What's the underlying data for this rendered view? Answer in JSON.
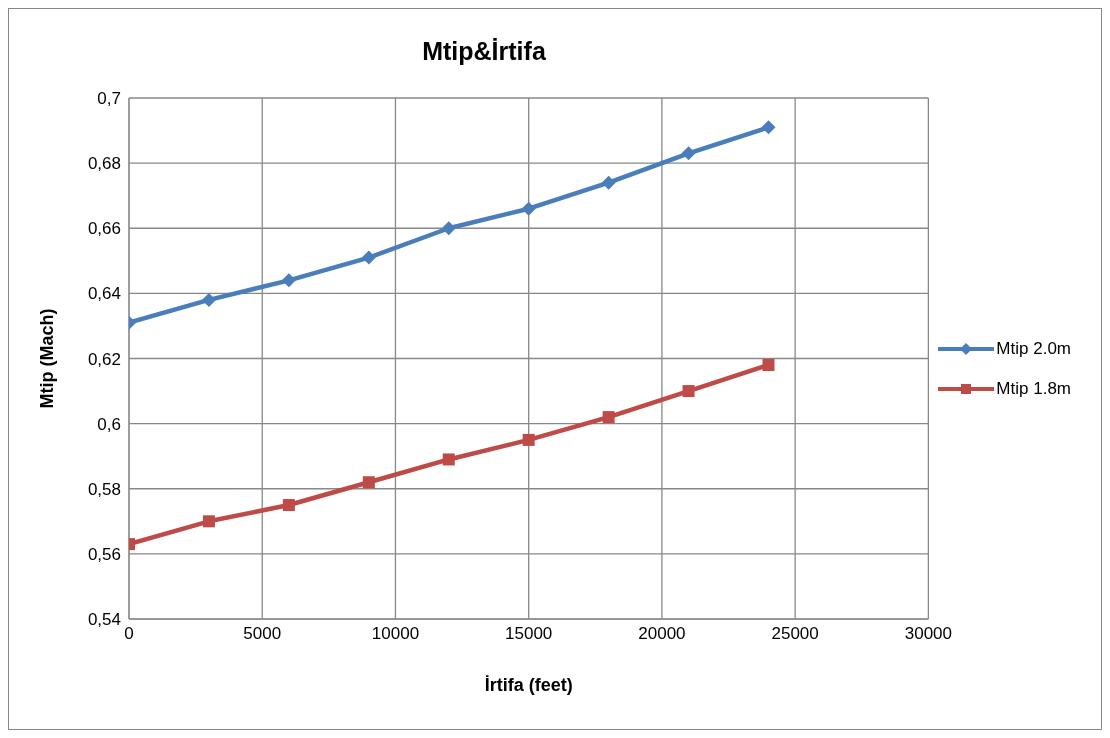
{
  "chart_data": {
    "type": "line",
    "title": "Mtip&İrtifa",
    "xlabel": "İrtifa (feet)",
    "ylabel": "Mtip (Mach)",
    "x": [
      0,
      3000,
      6000,
      9000,
      12000,
      15000,
      18000,
      21000,
      24000
    ],
    "series": [
      {
        "name": "Mtip 2.0m",
        "color": "#4a7ebb",
        "marker": "diamond",
        "values": [
          0.631,
          0.638,
          0.644,
          0.651,
          0.66,
          0.666,
          0.674,
          0.683,
          0.691
        ]
      },
      {
        "name": "Mtip 1.8m",
        "color": "#be4b48",
        "marker": "square",
        "values": [
          0.563,
          0.57,
          0.575,
          0.582,
          0.589,
          0.595,
          0.602,
          0.61,
          0.618
        ]
      }
    ],
    "xlim": [
      0,
      30000
    ],
    "xticks": [
      0,
      5000,
      10000,
      15000,
      20000,
      25000,
      30000
    ],
    "ylim": [
      0.54,
      0.7
    ],
    "yticks": [
      {
        "value": 0.54,
        "label": "0,54"
      },
      {
        "value": 0.56,
        "label": "0,56"
      },
      {
        "value": 0.58,
        "label": "0,58"
      },
      {
        "value": 0.6,
        "label": "0,6"
      },
      {
        "value": 0.62,
        "label": "0,62"
      },
      {
        "value": 0.64,
        "label": "0,64"
      },
      {
        "value": 0.66,
        "label": "0,66"
      },
      {
        "value": 0.68,
        "label": "0,68"
      },
      {
        "value": 0.7,
        "label": "0,7"
      }
    ],
    "grid": true,
    "legend": "right",
    "line_style": "solid"
  }
}
